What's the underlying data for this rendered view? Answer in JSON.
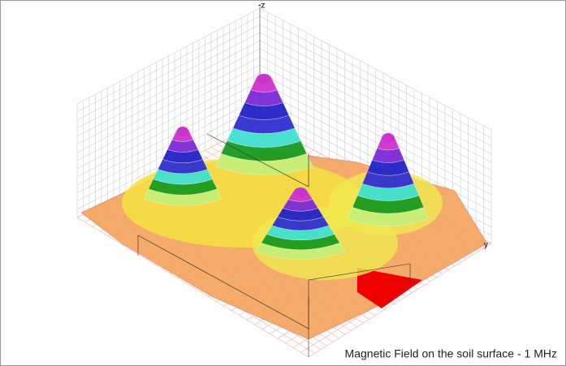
{
  "chart_data": {
    "type": "surface",
    "title": "Magnetic Field on the soil surface - 1 MHz",
    "zlabel": "-z",
    "ylabel": "y"
  }
}
